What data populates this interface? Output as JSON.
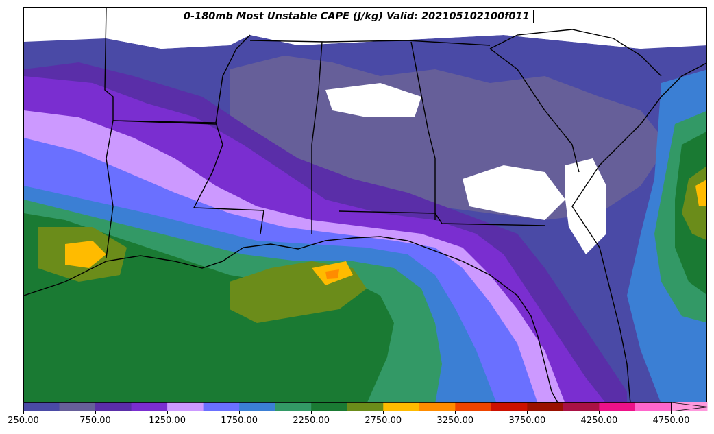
{
  "title": "0-180mb Most Unstable CAPE (J/kg) Valid: 202105102100f011",
  "colorbar": {
    "levels": [
      250,
      500,
      750,
      1000,
      1250,
      1500,
      1750,
      2000,
      2250,
      2500,
      2750,
      3000,
      3250,
      3500,
      3750,
      4000,
      4250,
      4500,
      4750,
      5000
    ],
    "colors": [
      "#4a4aa6",
      "#665f99",
      "#5a2ea8",
      "#7a2ed0",
      "#cc99ff",
      "#6a70ff",
      "#3b7fd4",
      "#339966",
      "#1a7a33",
      "#6b8c1a",
      "#ffbb00",
      "#ff8c00",
      "#ee4400",
      "#cc1100",
      "#991100",
      "#aa1144",
      "#ee1188",
      "#ff66cc",
      "#ff99dd"
    ],
    "extend": "max",
    "tick_labels": [
      "250.00",
      "750.00",
      "1250.00",
      "1750.00",
      "2250.00",
      "2750.00",
      "3250.00",
      "3750.00",
      "4250.00",
      "4750.00"
    ]
  },
  "field_colors": {
    "background": "#ffffff",
    "band_250": "#4a4aa6",
    "band_500": "#665f99",
    "band_750": "#5a2ea8",
    "band_1000": "#7a2ed0",
    "band_1250": "#cc99ff",
    "band_1500": "#6a70ff",
    "band_1750": "#3b7fd4",
    "band_2000": "#339966",
    "band_2250": "#1a7a33",
    "band_2500": "#6b8c1a",
    "band_2750": "#ffbb00",
    "band_3000": "#ff8c00",
    "band_3250": "#ee4400"
  }
}
